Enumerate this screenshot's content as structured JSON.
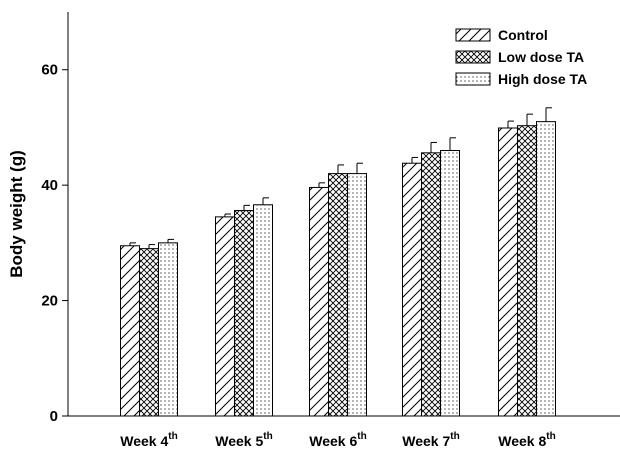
{
  "chart_data": {
    "type": "bar",
    "ylabel": "Body weight (g)",
    "ylim": [
      0,
      70
    ],
    "yticks": [
      0,
      20,
      40,
      60
    ],
    "categories": [
      {
        "main": "Week 4",
        "sup": "th"
      },
      {
        "main": "Week 5",
        "sup": "th"
      },
      {
        "main": "Week 6",
        "sup": "th"
      },
      {
        "main": "Week 7",
        "sup": "th"
      },
      {
        "main": "Week 8",
        "sup": "th"
      }
    ],
    "series": [
      {
        "name": "Control",
        "pattern": "hatch-diagonal",
        "values": [
          29.5,
          34.5,
          39.6,
          43.8,
          49.9
        ],
        "errors": [
          0.5,
          0.5,
          0.8,
          1.0,
          1.2
        ]
      },
      {
        "name": "Low dose TA",
        "pattern": "crosshatch",
        "values": [
          29.0,
          35.6,
          42.0,
          45.6,
          50.3
        ],
        "errors": [
          0.7,
          0.9,
          1.5,
          1.8,
          2.0
        ]
      },
      {
        "name": "High dose TA",
        "pattern": "dots",
        "values": [
          30.0,
          36.6,
          42.0,
          46.0,
          51.0
        ],
        "errors": [
          0.6,
          1.2,
          1.8,
          2.2,
          2.4
        ]
      }
    ],
    "legend_position": "top-right",
    "grid": false
  }
}
